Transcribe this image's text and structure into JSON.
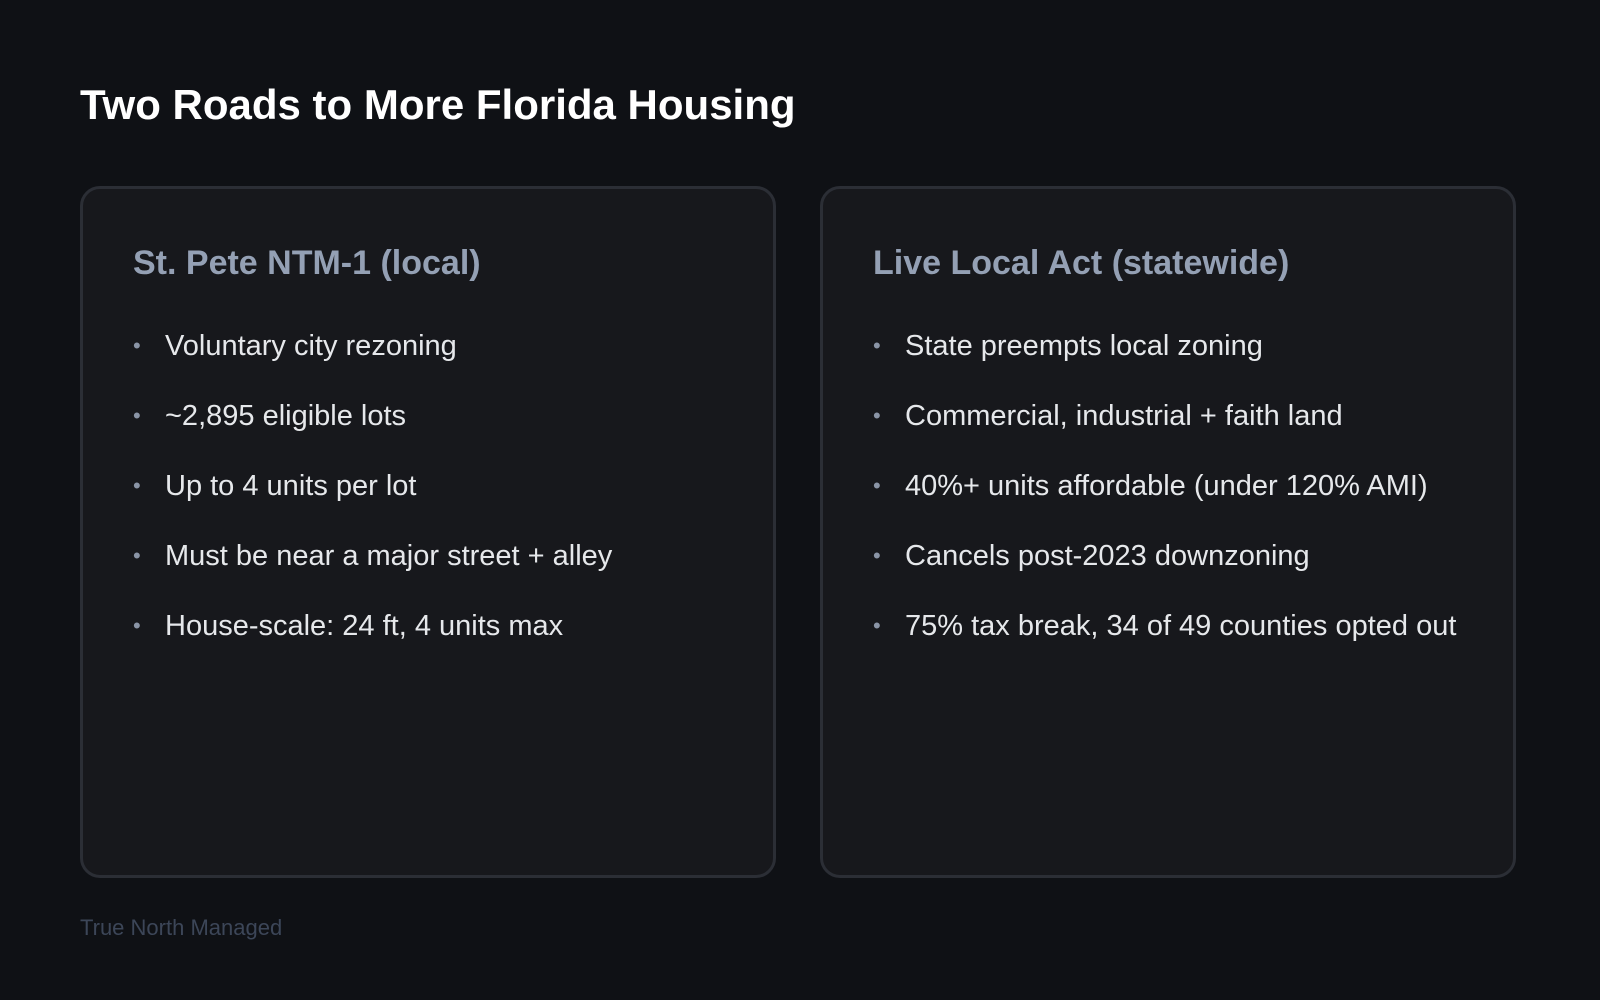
{
  "title": "Two Roads to More Florida Housing",
  "cards": [
    {
      "heading": "St. Pete NTM-1 (local)",
      "bullets": [
        "Voluntary city rezoning",
        "~2,895 eligible lots",
        "Up to 4 units per lot",
        "Must be near a major street + alley",
        "House-scale: 24 ft, 4 units max"
      ]
    },
    {
      "heading": "Live Local Act (statewide)",
      "bullets": [
        "State preempts local zoning",
        "Commercial, industrial + faith land",
        "40%+ units affordable (under 120% AMI)",
        "Cancels post-2023 downzoning",
        "75% tax break, 34 of 49 counties opted out"
      ]
    }
  ],
  "bullet_glyph": "•",
  "footer": "True North Managed",
  "colors": {
    "background": "#0f1115",
    "card_background": "#17181c",
    "card_border": "#2b2e35",
    "card_heading": "#94a0b4",
    "footer_text": "#3c4658"
  }
}
